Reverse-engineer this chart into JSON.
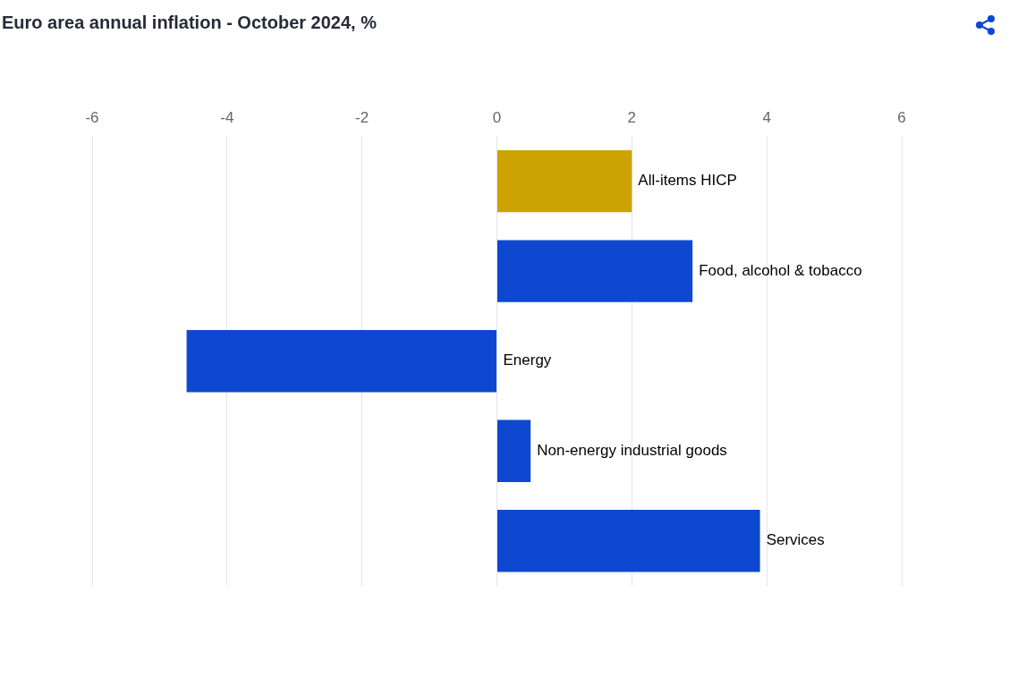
{
  "chart_data": {
    "type": "bar",
    "title": "Euro area annual inflation - October 2024, %",
    "orientation": "horizontal",
    "categories": [
      "All-items HICP",
      "Food, alcohol & tobacco",
      "Energy",
      "Non-energy industrial goods",
      "Services"
    ],
    "values": [
      2.0,
      2.9,
      -4.6,
      0.5,
      3.9
    ],
    "colors": [
      "#cca300",
      "#0f48d0",
      "#0f48d0",
      "#0f48d0",
      "#0f48d0"
    ],
    "xlim": [
      -6,
      6
    ],
    "xticks": [
      -6,
      -4,
      -2,
      0,
      2,
      4,
      6
    ],
    "grid": "x",
    "legend": false
  }
}
